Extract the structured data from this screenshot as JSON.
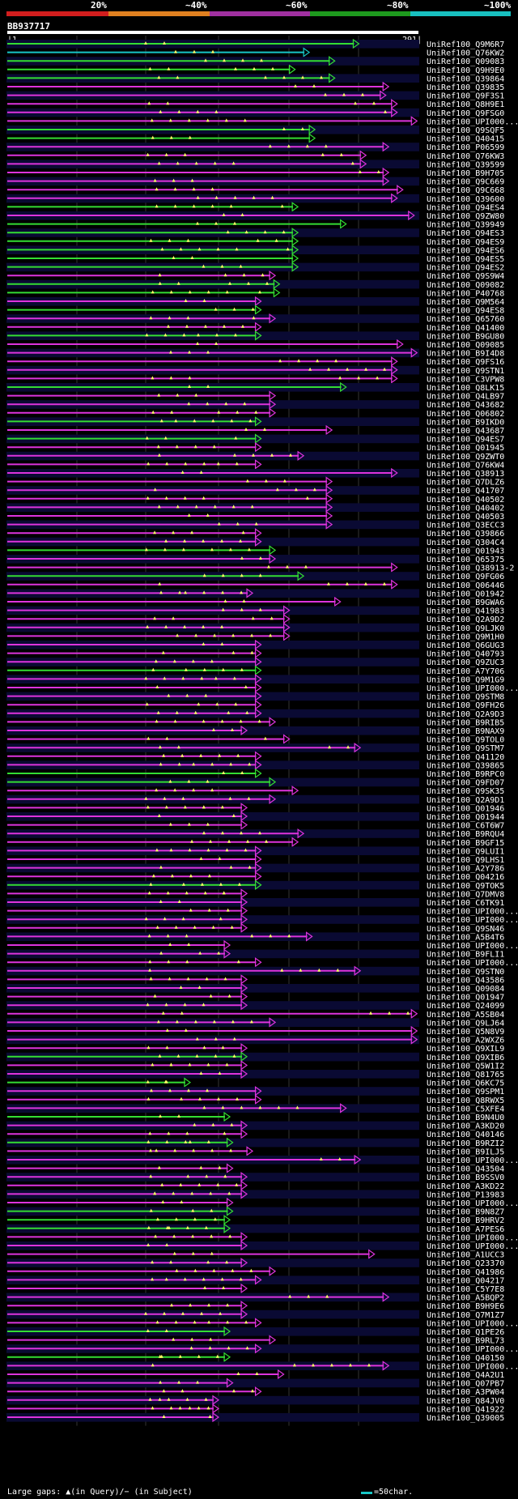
{
  "header": {
    "percent_labels": [
      "20%",
      "~40%",
      "~60%",
      "~80%",
      "~100%"
    ],
    "color_scale": [
      "#d21e1e",
      "#e08020",
      "#a030a0",
      "#1e9a1e",
      "#18c0c0"
    ],
    "query_name": "BB937717",
    "query_start": "1",
    "query_end": "291"
  },
  "colors": {
    "background": "#000000",
    "row_band": "#0a0a33",
    "grid": "#333333",
    "green_hit": "#33dd33",
    "magenta_hit": "#dd33dd",
    "cyan_hit": "#18c6c6",
    "gap_marker": "#ffff66",
    "line": "#aaaaaa"
  },
  "chart_data": {
    "type": "alignment-overview",
    "query_length": 291,
    "hits": [
      {
        "id": "UniRef100_Q9M6R7",
        "start": 1,
        "end": 249,
        "color": "green"
      },
      {
        "id": "UniRef100_Q76KW2",
        "start": 1,
        "end": 214,
        "color": "cyan"
      },
      {
        "id": "UniRef100_Q09083",
        "start": 1,
        "end": 232,
        "color": "green"
      },
      {
        "id": "UniRef100_Q9H9E0",
        "start": 1,
        "end": 204,
        "color": "green"
      },
      {
        "id": "UniRef100_Q39864",
        "start": 1,
        "end": 232,
        "color": "green"
      },
      {
        "id": "UniRef100_Q39835",
        "start": 1,
        "end": 270,
        "color": "magenta"
      },
      {
        "id": "UniRef100_Q9F3S1",
        "start": 1,
        "end": 268,
        "color": "magenta"
      },
      {
        "id": "UniRef100_Q8H9E1",
        "start": 1,
        "end": 276,
        "color": "magenta"
      },
      {
        "id": "UniRef100_Q9FSG0",
        "start": 1,
        "end": 276,
        "color": "magenta"
      },
      {
        "id": "UniRef100_UPI000...",
        "start": 1,
        "end": 290,
        "color": "magenta"
      },
      {
        "id": "UniRef100_Q9SQF5",
        "start": 1,
        "end": 218,
        "color": "green"
      },
      {
        "id": "UniRef100_Q40415",
        "start": 1,
        "end": 218,
        "color": "green"
      },
      {
        "id": "UniRef100_P06599",
        "start": 1,
        "end": 270,
        "color": "magenta"
      },
      {
        "id": "UniRef100_Q76KW3",
        "start": 1,
        "end": 254,
        "color": "magenta"
      },
      {
        "id": "UniRef100_Q39599",
        "start": 1,
        "end": 254,
        "color": "magenta"
      },
      {
        "id": "UniRef100_B9H705",
        "start": 1,
        "end": 270,
        "color": "magenta"
      },
      {
        "id": "UniRef100_Q9C669",
        "start": 1,
        "end": 270,
        "color": "magenta"
      },
      {
        "id": "UniRef100_Q9C668",
        "start": 1,
        "end": 280,
        "color": "magenta"
      },
      {
        "id": "UniRef100_Q39600",
        "start": 1,
        "end": 276,
        "color": "magenta"
      },
      {
        "id": "UniRef100_Q94ES4",
        "start": 1,
        "end": 206,
        "color": "green"
      },
      {
        "id": "UniRef100_Q9ZW80",
        "start": 1,
        "end": 288,
        "color": "magenta"
      },
      {
        "id": "UniRef100_Q39949",
        "start": 1,
        "end": 240,
        "color": "green"
      },
      {
        "id": "UniRef100_Q94ES3",
        "start": 1,
        "end": 206,
        "color": "green"
      },
      {
        "id": "UniRef100_Q94ES9",
        "start": 1,
        "end": 206,
        "color": "green"
      },
      {
        "id": "UniRef100_Q94ES6",
        "start": 1,
        "end": 206,
        "color": "green"
      },
      {
        "id": "UniRef100_Q94ES5",
        "start": 1,
        "end": 206,
        "color": "green"
      },
      {
        "id": "UniRef100_Q94ES2",
        "start": 1,
        "end": 206,
        "color": "green"
      },
      {
        "id": "UniRef100_Q9S9W4",
        "start": 1,
        "end": 190,
        "color": "magenta"
      },
      {
        "id": "UniRef100_Q09082",
        "start": 1,
        "end": 193,
        "color": "green"
      },
      {
        "id": "UniRef100_P40768",
        "start": 1,
        "end": 193,
        "color": "green"
      },
      {
        "id": "UniRef100_Q9M564",
        "start": 1,
        "end": 180,
        "color": "magenta"
      },
      {
        "id": "UniRef100_Q94ES8",
        "start": 1,
        "end": 180,
        "color": "green"
      },
      {
        "id": "UniRef100_Q65760",
        "start": 1,
        "end": 190,
        "color": "magenta"
      },
      {
        "id": "UniRef100_Q41400",
        "start": 1,
        "end": 180,
        "color": "magenta"
      },
      {
        "id": "UniRef100_B9GU80",
        "start": 1,
        "end": 180,
        "color": "green"
      },
      {
        "id": "UniRef100_Q09085",
        "start": 1,
        "end": 280,
        "color": "magenta"
      },
      {
        "id": "UniRef100_B9I4D8",
        "start": 1,
        "end": 290,
        "color": "magenta"
      },
      {
        "id": "UniRef100_Q9FS16",
        "start": 1,
        "end": 276,
        "color": "magenta"
      },
      {
        "id": "UniRef100_Q9STN1",
        "start": 1,
        "end": 276,
        "color": "magenta"
      },
      {
        "id": "UniRef100_C3VPW8",
        "start": 1,
        "end": 276,
        "color": "magenta"
      },
      {
        "id": "UniRef100_Q8LK15",
        "start": 1,
        "end": 240,
        "color": "green"
      },
      {
        "id": "UniRef100_Q4LB97",
        "start": 1,
        "end": 190,
        "color": "magenta"
      },
      {
        "id": "UniRef100_Q43682",
        "start": 1,
        "end": 190,
        "color": "magenta"
      },
      {
        "id": "UniRef100_Q06802",
        "start": 1,
        "end": 190,
        "color": "magenta"
      },
      {
        "id": "UniRef100_B9IKD0",
        "start": 1,
        "end": 180,
        "color": "green"
      },
      {
        "id": "UniRef100_Q43687",
        "start": 1,
        "end": 230,
        "color": "magenta"
      },
      {
        "id": "UniRef100_Q94ES7",
        "start": 1,
        "end": 180,
        "color": "green"
      },
      {
        "id": "UniRef100_Q01945",
        "start": 1,
        "end": 180,
        "color": "magenta"
      },
      {
        "id": "UniRef100_Q9ZWT0",
        "start": 1,
        "end": 210,
        "color": "magenta"
      },
      {
        "id": "UniRef100_Q76KW4",
        "start": 1,
        "end": 180,
        "color": "magenta"
      },
      {
        "id": "UniRef100_Q38913",
        "start": 1,
        "end": 276,
        "color": "magenta"
      },
      {
        "id": "UniRef100_Q7DLZ6",
        "start": 1,
        "end": 230,
        "color": "magenta"
      },
      {
        "id": "UniRef100_Q41707",
        "start": 1,
        "end": 230,
        "color": "magenta"
      },
      {
        "id": "UniRef100_Q40502",
        "start": 1,
        "end": 230,
        "color": "magenta"
      },
      {
        "id": "UniRef100_Q40402",
        "start": 1,
        "end": 230,
        "color": "magenta"
      },
      {
        "id": "UniRef100_Q40503",
        "start": 1,
        "end": 230,
        "color": "magenta"
      },
      {
        "id": "UniRef100_Q3ECC3",
        "start": 1,
        "end": 230,
        "color": "magenta"
      },
      {
        "id": "UniRef100_Q39866",
        "start": 1,
        "end": 180,
        "color": "magenta"
      },
      {
        "id": "UniRef100_Q304C4",
        "start": 1,
        "end": 180,
        "color": "magenta"
      },
      {
        "id": "UniRef100_Q01943",
        "start": 1,
        "end": 190,
        "color": "green"
      },
      {
        "id": "UniRef100_Q65375",
        "start": 1,
        "end": 190,
        "color": "magenta"
      },
      {
        "id": "UniRef100_Q38913-2",
        "start": 1,
        "end": 276,
        "color": "magenta"
      },
      {
        "id": "UniRef100_Q9FG06",
        "start": 1,
        "end": 210,
        "color": "green"
      },
      {
        "id": "UniRef100_Q06446",
        "start": 1,
        "end": 276,
        "color": "magenta"
      },
      {
        "id": "UniRef100_Q01942",
        "start": 1,
        "end": 174,
        "color": "magenta"
      },
      {
        "id": "UniRef100_B9GWA6",
        "start": 1,
        "end": 236,
        "color": "magenta"
      },
      {
        "id": "UniRef100_Q41983",
        "start": 1,
        "end": 200,
        "color": "magenta"
      },
      {
        "id": "UniRef100_Q2A9D2",
        "start": 1,
        "end": 200,
        "color": "magenta"
      },
      {
        "id": "UniRef100_Q9LJK0",
        "start": 1,
        "end": 200,
        "color": "magenta"
      },
      {
        "id": "UniRef100_Q9M1H0",
        "start": 1,
        "end": 200,
        "color": "magenta"
      },
      {
        "id": "UniRef100_Q6GUG3",
        "start": 1,
        "end": 180,
        "color": "magenta"
      },
      {
        "id": "UniRef100_Q40793",
        "start": 1,
        "end": 180,
        "color": "magenta"
      },
      {
        "id": "UniRef100_Q9ZUC3",
        "start": 1,
        "end": 180,
        "color": "magenta"
      },
      {
        "id": "UniRef100_A7Y706",
        "start": 1,
        "end": 180,
        "color": "green"
      },
      {
        "id": "UniRef100_Q9M1G9",
        "start": 1,
        "end": 180,
        "color": "magenta"
      },
      {
        "id": "UniRef100_UPI000...",
        "start": 1,
        "end": 180,
        "color": "magenta"
      },
      {
        "id": "UniRef100_Q9STM8",
        "start": 1,
        "end": 180,
        "color": "magenta"
      },
      {
        "id": "UniRef100_Q9FH26",
        "start": 1,
        "end": 180,
        "color": "magenta"
      },
      {
        "id": "UniRef100_Q2A9D3",
        "start": 1,
        "end": 180,
        "color": "magenta"
      },
      {
        "id": "UniRef100_B9RIB5",
        "start": 1,
        "end": 190,
        "color": "magenta"
      },
      {
        "id": "UniRef100_B9NAX9",
        "start": 1,
        "end": 170,
        "color": "magenta"
      },
      {
        "id": "UniRef100_Q9TOL0",
        "start": 1,
        "end": 200,
        "color": "magenta"
      },
      {
        "id": "UniRef100_Q9STM7",
        "start": 1,
        "end": 250,
        "color": "magenta"
      },
      {
        "id": "UniRef100_Q41120",
        "start": 1,
        "end": 180,
        "color": "magenta"
      },
      {
        "id": "UniRef100_Q39865",
        "start": 1,
        "end": 180,
        "color": "magenta"
      },
      {
        "id": "UniRef100_B9RPC0",
        "start": 1,
        "end": 180,
        "color": "green"
      },
      {
        "id": "UniRef100_Q9FD07",
        "start": 1,
        "end": 190,
        "color": "green"
      },
      {
        "id": "UniRef100_Q9SK35",
        "start": 1,
        "end": 206,
        "color": "magenta"
      },
      {
        "id": "UniRef100_Q2A9D1",
        "start": 1,
        "end": 190,
        "color": "magenta"
      },
      {
        "id": "UniRef100_Q01946",
        "start": 1,
        "end": 170,
        "color": "magenta"
      },
      {
        "id": "UniRef100_Q01944",
        "start": 1,
        "end": 170,
        "color": "magenta"
      },
      {
        "id": "UniRef100_C6T6W7",
        "start": 1,
        "end": 170,
        "color": "magenta"
      },
      {
        "id": "UniRef100_B9RQU4",
        "start": 1,
        "end": 210,
        "color": "magenta"
      },
      {
        "id": "UniRef100_B9GF15",
        "start": 1,
        "end": 206,
        "color": "magenta"
      },
      {
        "id": "UniRef100_Q9LUI1",
        "start": 1,
        "end": 180,
        "color": "magenta"
      },
      {
        "id": "UniRef100_Q9LHS1",
        "start": 1,
        "end": 180,
        "color": "magenta"
      },
      {
        "id": "UniRef100_A2Y786",
        "start": 1,
        "end": 180,
        "color": "magenta"
      },
      {
        "id": "UniRef100_Q04216",
        "start": 1,
        "end": 180,
        "color": "magenta"
      },
      {
        "id": "UniRef100_Q9TOK5",
        "start": 1,
        "end": 180,
        "color": "green"
      },
      {
        "id": "UniRef100_Q7DMV8",
        "start": 1,
        "end": 170,
        "color": "magenta"
      },
      {
        "id": "UniRef100_C6TK91",
        "start": 1,
        "end": 170,
        "color": "magenta"
      },
      {
        "id": "UniRef100_UPI000...",
        "start": 1,
        "end": 170,
        "color": "magenta"
      },
      {
        "id": "UniRef100_UPI000...",
        "start": 1,
        "end": 170,
        "color": "magenta"
      },
      {
        "id": "UniRef100_Q9SN46",
        "start": 1,
        "end": 170,
        "color": "magenta"
      },
      {
        "id": "UniRef100_A5B4T6",
        "start": 1,
        "end": 216,
        "color": "magenta"
      },
      {
        "id": "UniRef100_UPI000...",
        "start": 1,
        "end": 158,
        "color": "magenta"
      },
      {
        "id": "UniRef100_B9FLI1",
        "start": 1,
        "end": 158,
        "color": "magenta"
      },
      {
        "id": "UniRef100_UPI000...",
        "start": 1,
        "end": 180,
        "color": "magenta"
      },
      {
        "id": "UniRef100_Q9STN0",
        "start": 1,
        "end": 250,
        "color": "magenta"
      },
      {
        "id": "UniRef100_Q43586",
        "start": 1,
        "end": 170,
        "color": "magenta"
      },
      {
        "id": "UniRef100_Q09084",
        "start": 1,
        "end": 170,
        "color": "magenta"
      },
      {
        "id": "UniRef100_Q01947",
        "start": 1,
        "end": 170,
        "color": "magenta"
      },
      {
        "id": "UniRef100_Q24099",
        "start": 1,
        "end": 170,
        "color": "magenta"
      },
      {
        "id": "UniRef100_A5SB04",
        "start": 1,
        "end": 290,
        "color": "magenta"
      },
      {
        "id": "UniRef100_Q9LJ64",
        "start": 1,
        "end": 190,
        "color": "magenta"
      },
      {
        "id": "UniRef100_Q5N8V9",
        "start": 1,
        "end": 290,
        "color": "magenta"
      },
      {
        "id": "UniRef100_A2WXZ6",
        "start": 1,
        "end": 290,
        "color": "magenta"
      },
      {
        "id": "UniRef100_Q9XIL9",
        "start": 1,
        "end": 170,
        "color": "magenta"
      },
      {
        "id": "UniRef100_Q9XIB6",
        "start": 1,
        "end": 170,
        "color": "green"
      },
      {
        "id": "UniRef100_Q5W1I2",
        "start": 1,
        "end": 170,
        "color": "magenta"
      },
      {
        "id": "UniRef100_Q81765",
        "start": 1,
        "end": 170,
        "color": "magenta"
      },
      {
        "id": "UniRef100_Q6KC75",
        "start": 1,
        "end": 130,
        "color": "green"
      },
      {
        "id": "UniRef100_Q9SPM1",
        "start": 1,
        "end": 180,
        "color": "magenta"
      },
      {
        "id": "UniRef100_Q8RWX5",
        "start": 1,
        "end": 180,
        "color": "magenta"
      },
      {
        "id": "UniRef100_C5XFE4",
        "start": 1,
        "end": 240,
        "color": "magenta"
      },
      {
        "id": "UniRef100_B9N4U0",
        "start": 1,
        "end": 158,
        "color": "green"
      },
      {
        "id": "UniRef100_A3KD20",
        "start": 1,
        "end": 170,
        "color": "magenta"
      },
      {
        "id": "UniRef100_Q40146",
        "start": 1,
        "end": 170,
        "color": "magenta"
      },
      {
        "id": "UniRef100_B9RZI2",
        "start": 1,
        "end": 160,
        "color": "green"
      },
      {
        "id": "UniRef100_B9ILJ5",
        "start": 1,
        "end": 174,
        "color": "magenta"
      },
      {
        "id": "UniRef100_UPI000...",
        "start": 1,
        "end": 250,
        "color": "magenta"
      },
      {
        "id": "UniRef100_Q43504",
        "start": 1,
        "end": 160,
        "color": "magenta"
      },
      {
        "id": "UniRef100_B9SSV0",
        "start": 1,
        "end": 170,
        "color": "magenta"
      },
      {
        "id": "UniRef100_A3KD22",
        "start": 1,
        "end": 170,
        "color": "magenta"
      },
      {
        "id": "UniRef100_P13983",
        "start": 1,
        "end": 170,
        "color": "magenta"
      },
      {
        "id": "UniRef100_UPI000...",
        "start": 1,
        "end": 160,
        "color": "magenta"
      },
      {
        "id": "UniRef100_B9N8Z7",
        "start": 1,
        "end": 160,
        "color": "green"
      },
      {
        "id": "UniRef100_B9HRV2",
        "start": 1,
        "end": 158,
        "color": "green"
      },
      {
        "id": "UniRef100_A7PES6",
        "start": 1,
        "end": 158,
        "color": "green"
      },
      {
        "id": "UniRef100_UPI000...",
        "start": 1,
        "end": 170,
        "color": "magenta"
      },
      {
        "id": "UniRef100_UPI000...",
        "start": 1,
        "end": 170,
        "color": "magenta"
      },
      {
        "id": "UniRef100_A1UCC3",
        "start": 1,
        "end": 260,
        "color": "magenta"
      },
      {
        "id": "UniRef100_Q23370",
        "start": 1,
        "end": 170,
        "color": "magenta"
      },
      {
        "id": "UniRef100_Q41986",
        "start": 1,
        "end": 190,
        "color": "magenta"
      },
      {
        "id": "UniRef100_Q04217",
        "start": 1,
        "end": 180,
        "color": "magenta"
      },
      {
        "id": "UniRef100_C5Y7E8",
        "start": 1,
        "end": 170,
        "color": "magenta"
      },
      {
        "id": "UniRef100_A5BQP2",
        "start": 1,
        "end": 270,
        "color": "magenta"
      },
      {
        "id": "UniRef100_B9H9E6",
        "start": 1,
        "end": 170,
        "color": "magenta"
      },
      {
        "id": "UniRef100_Q7M1Z7",
        "start": 1,
        "end": 170,
        "color": "magenta"
      },
      {
        "id": "UniRef100_UPI000...",
        "start": 1,
        "end": 180,
        "color": "magenta"
      },
      {
        "id": "UniRef100_Q1PE26",
        "start": 1,
        "end": 158,
        "color": "green"
      },
      {
        "id": "UniRef100_B9RL73",
        "start": 1,
        "end": 190,
        "color": "magenta"
      },
      {
        "id": "UniRef100_UPI000...",
        "start": 1,
        "end": 180,
        "color": "magenta"
      },
      {
        "id": "UniRef100_Q40150",
        "start": 1,
        "end": 158,
        "color": "green"
      },
      {
        "id": "UniRef100_UPI000...",
        "start": 1,
        "end": 270,
        "color": "magenta"
      },
      {
        "id": "UniRef100_Q4A2U1",
        "start": 1,
        "end": 196,
        "color": "magenta"
      },
      {
        "id": "UniRef100_Q07PB7",
        "start": 1,
        "end": 160,
        "color": "magenta"
      },
      {
        "id": "UniRef100_A3PW04",
        "start": 1,
        "end": 180,
        "color": "magenta"
      },
      {
        "id": "UniRef100_Q84JV0",
        "start": 1,
        "end": 150,
        "color": "magenta"
      },
      {
        "id": "UniRef100_Q41922",
        "start": 1,
        "end": 150,
        "color": "magenta"
      },
      {
        "id": "UniRef100_Q39005",
        "start": 1,
        "end": 150,
        "color": "magenta"
      }
    ]
  },
  "footer": {
    "gap_legend": "Large gaps: ▲(in Query)/− (in Subject)",
    "scale_text": "=50char."
  }
}
